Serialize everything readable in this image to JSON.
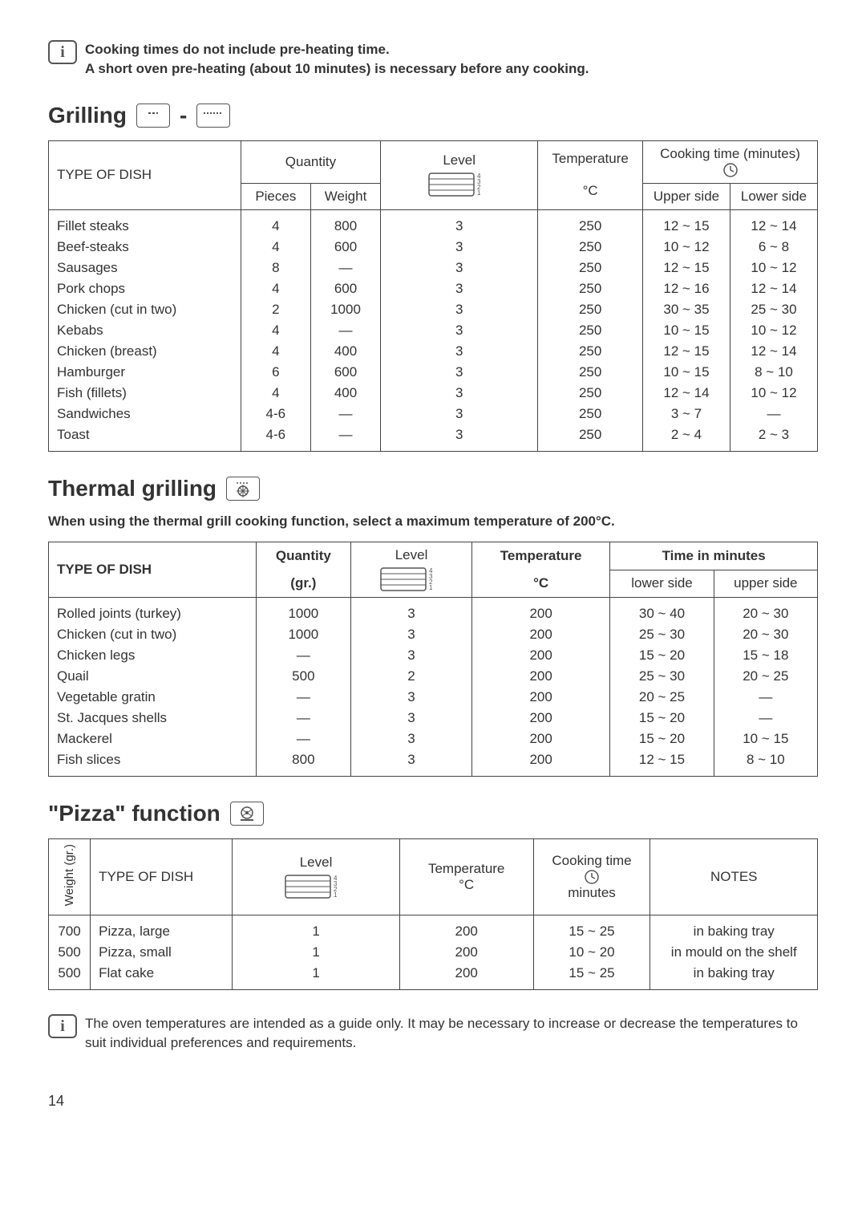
{
  "info1": {
    "line1": "Cooking times do not include pre-heating time.",
    "line2": "A short oven pre-heating (about 10 minutes) is necessary before any cooking."
  },
  "grilling": {
    "title": "Grilling",
    "headers": {
      "type": "TYPE OF DISH",
      "quantity": "Quantity",
      "pieces": "Pieces",
      "weight": "Weight",
      "level": "Level",
      "temp": "Temperature",
      "tempunit": "°C",
      "time": "Cooking time (minutes)",
      "upper": "Upper side",
      "lower": "Lower side"
    },
    "rows": [
      {
        "dish": "Fillet steaks",
        "pieces": "4",
        "weight": "800",
        "level": "3",
        "temp": "250",
        "upper": "12 ~ 15",
        "lower": "12 ~ 14"
      },
      {
        "dish": "Beef-steaks",
        "pieces": "4",
        "weight": "600",
        "level": "3",
        "temp": "250",
        "upper": "10 ~ 12",
        "lower": "6 ~ 8"
      },
      {
        "dish": "Sausages",
        "pieces": "8",
        "weight": "—",
        "level": "3",
        "temp": "250",
        "upper": "12 ~ 15",
        "lower": "10 ~ 12"
      },
      {
        "dish": "Pork chops",
        "pieces": "4",
        "weight": "600",
        "level": "3",
        "temp": "250",
        "upper": "12 ~ 16",
        "lower": "12 ~ 14"
      },
      {
        "dish": "Chicken (cut in two)",
        "pieces": "2",
        "weight": "1000",
        "level": "3",
        "temp": "250",
        "upper": "30 ~ 35",
        "lower": "25 ~ 30"
      },
      {
        "dish": "Kebabs",
        "pieces": "4",
        "weight": "—",
        "level": "3",
        "temp": "250",
        "upper": "10 ~ 15",
        "lower": "10 ~ 12"
      },
      {
        "dish": "Chicken (breast)",
        "pieces": "4",
        "weight": "400",
        "level": "3",
        "temp": "250",
        "upper": "12 ~ 15",
        "lower": "12 ~ 14"
      },
      {
        "dish": "Hamburger",
        "pieces": "6",
        "weight": "600",
        "level": "3",
        "temp": "250",
        "upper": "10 ~ 15",
        "lower": "8 ~ 10"
      },
      {
        "dish": "Fish (fillets)",
        "pieces": "4",
        "weight": "400",
        "level": "3",
        "temp": "250",
        "upper": "12 ~ 14",
        "lower": "10 ~ 12"
      },
      {
        "dish": "Sandwiches",
        "pieces": "4-6",
        "weight": "—",
        "level": "3",
        "temp": "250",
        "upper": "3 ~ 7",
        "lower": "—"
      },
      {
        "dish": "Toast",
        "pieces": "4-6",
        "weight": "—",
        "level": "3",
        "temp": "250",
        "upper": "2 ~ 4",
        "lower": "2 ~ 3"
      }
    ]
  },
  "thermal": {
    "title": "Thermal grilling",
    "note": "When using the thermal grill cooking function, select a maximum temperature of 200°C.",
    "headers": {
      "type": "TYPE OF DISH",
      "qty": "Quantity",
      "qtyunit": "(gr.)",
      "level": "Level",
      "temp": "Temperature",
      "tempunit": "°C",
      "time": "Time in minutes",
      "lower": "lower side",
      "upper": "upper side"
    },
    "rows": [
      {
        "dish": "Rolled joints (turkey)",
        "qty": "1000",
        "level": "3",
        "temp": "200",
        "lower": "30 ~ 40",
        "upper": "20 ~ 30"
      },
      {
        "dish": "Chicken (cut in two)",
        "qty": "1000",
        "level": "3",
        "temp": "200",
        "lower": "25 ~ 30",
        "upper": "20 ~ 30"
      },
      {
        "dish": "Chicken legs",
        "qty": "—",
        "level": "3",
        "temp": "200",
        "lower": "15 ~ 20",
        "upper": "15 ~ 18"
      },
      {
        "dish": "Quail",
        "qty": "500",
        "level": "2",
        "temp": "200",
        "lower": "25 ~ 30",
        "upper": "20 ~ 25"
      },
      {
        "dish": "Vegetable gratin",
        "qty": "—",
        "level": "3",
        "temp": "200",
        "lower": "20 ~ 25",
        "upper": "—"
      },
      {
        "dish": "St. Jacques shells",
        "qty": "—",
        "level": "3",
        "temp": "200",
        "lower": "15 ~ 20",
        "upper": "—"
      },
      {
        "dish": "Mackerel",
        "qty": "—",
        "level": "3",
        "temp": "200",
        "lower": "15 ~ 20",
        "upper": "10 ~ 15"
      },
      {
        "dish": "Fish slices",
        "qty": "800",
        "level": "3",
        "temp": "200",
        "lower": "12 ~ 15",
        "upper": "8 ~ 10"
      }
    ]
  },
  "pizza": {
    "title": "\"Pizza\" function",
    "headers": {
      "weight": "Weight (gr.)",
      "type": "TYPE OF DISH",
      "level": "Level",
      "temp": "Temperature",
      "tempunit": "°C",
      "time": "Cooking time",
      "timeunit": "minutes",
      "notes": "NOTES"
    },
    "rows": [
      {
        "weight": "700",
        "dish": "Pizza, large",
        "level": "1",
        "temp": "200",
        "time": "15 ~ 25",
        "notes": "in baking tray"
      },
      {
        "weight": "500",
        "dish": "Pizza, small",
        "level": "1",
        "temp": "200",
        "time": "10 ~ 20",
        "notes": "in mould on the shelf"
      },
      {
        "weight": "500",
        "dish": "Flat cake",
        "level": "1",
        "temp": "200",
        "time": "15 ~ 25",
        "notes": "in baking tray"
      }
    ]
  },
  "info2": "The oven temperatures are intended as a guide only. It may be necessary to increase or decrease the temperatures to suit individual preferences and requirements.",
  "page": "14"
}
